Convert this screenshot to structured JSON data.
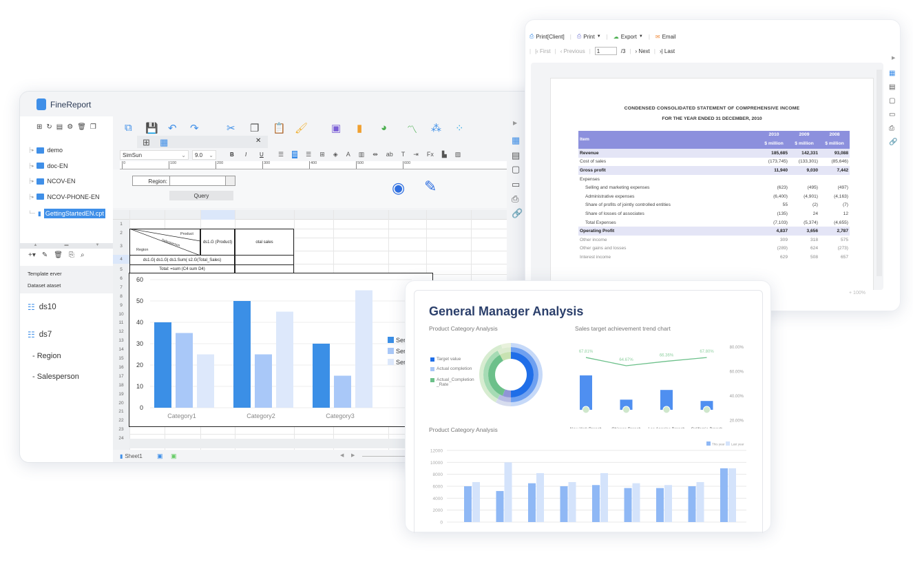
{
  "designer": {
    "app_title": "FineReport",
    "tree": [
      {
        "label": "demo",
        "type": "folder"
      },
      {
        "label": "doc-EN",
        "type": "folder"
      },
      {
        "label": "NCOV-EN",
        "type": "folder"
      },
      {
        "label": "NCOV-PHONE-EN",
        "type": "folder"
      },
      {
        "label": "GettingStartedEN.cpt",
        "type": "file",
        "selected": true
      }
    ],
    "panel_labels": [
      "Template erver",
      "Dataset ataset"
    ],
    "datasets": [
      {
        "label": "ds10",
        "fields": []
      },
      {
        "label": "ds7",
        "fields": [
          "- Region",
          "- Salesperson"
        ]
      }
    ],
    "font_name": "SimSun",
    "font_size": "9.0",
    "format_buttons": [
      "B",
      "I",
      "U"
    ],
    "ruler_ticks": [
      "0",
      "100",
      "200",
      "300",
      "400",
      "500",
      "600"
    ],
    "param_label": "Region:",
    "param_value": "",
    "query_button": "Query",
    "row_numbers": [
      "1",
      "2",
      "3",
      "4",
      "5",
      "6",
      "7",
      "8",
      "9",
      "10",
      "11",
      "12",
      "13",
      "14",
      "15",
      "16",
      "17",
      "18",
      "19",
      "20",
      "21",
      "22",
      "23",
      "24"
    ],
    "cells": {
      "product": "Product",
      "salesperson": "Salesperson",
      "region": "Region",
      "ds1g": "ds1.G (Product)",
      "total_sales_header": "otal sales",
      "row3": "ds1.G| ds1.G| ds1.Sum( s2.G(Total_Sales)",
      "row4": "Total: =sum (C4 sum D4)"
    },
    "sheet_tab": "Sheet1",
    "accent": "#3f8fe8"
  },
  "preview": {
    "toolbar": [
      "Print[Client]",
      "Print",
      "Export",
      "Email"
    ],
    "pager": {
      "first": "First",
      "previous": "Previous",
      "page": "1",
      "total": "/3",
      "next": "Next",
      "last": "Last"
    },
    "zoom": "100%",
    "title": "CONDENSED CONSOLIDATED STATEMENT OF COMPREHENSIVE INCOME",
    "subtitle": "FOR THE YEAR ENDED 31 DECEMBER, 2010",
    "header": {
      "item": "Item",
      "years": [
        "2010",
        "2009",
        "2008"
      ],
      "unit": "$ million"
    },
    "rows": [
      {
        "label": "Revenue",
        "values": [
          "185,685",
          "142,331",
          "93,088"
        ],
        "style": "band"
      },
      {
        "label": "Cost of sales",
        "values": [
          "(173,745)",
          "(133,301)",
          "(85,646)"
        ],
        "style": "normal"
      },
      {
        "label": "Gross profit",
        "values": [
          "11,940",
          "9,030",
          "7,442"
        ],
        "style": "band"
      },
      {
        "label": "Expenses",
        "values": [
          "",
          "",
          ""
        ],
        "style": "normal"
      },
      {
        "label": "Selling and marketing expenses",
        "values": [
          "(623)",
          "(495)",
          "(497)"
        ],
        "style": "indent"
      },
      {
        "label": "Administrative expenses",
        "values": [
          "(6,400)",
          "(4,901)",
          "(4,163)"
        ],
        "style": "indent"
      },
      {
        "label": "Share of profits of jointly controlled entities",
        "values": [
          "55",
          "(2)",
          "(7)"
        ],
        "style": "indent"
      },
      {
        "label": "Share of losses of associates",
        "values": [
          "(135)",
          "24",
          "12"
        ],
        "style": "indent"
      },
      {
        "label": "Total Expenses",
        "values": [
          "(7,103)",
          "(5,374)",
          "(4,655)"
        ],
        "style": "indent"
      },
      {
        "label": "Operating Profit",
        "values": [
          "4,837",
          "3,656",
          "2,787"
        ],
        "style": "band"
      },
      {
        "label": "Other income",
        "values": [
          "309",
          "318",
          "575"
        ],
        "style": "faded"
      },
      {
        "label": "Other gains and losses",
        "values": [
          "(289)",
          "624",
          "(273)"
        ],
        "style": "faded"
      },
      {
        "label": "Interest income",
        "values": [
          "629",
          "508",
          "657"
        ],
        "style": "faded"
      }
    ],
    "header_color": "#8c90dd"
  },
  "dashboard": {
    "title": "General Manager Analysis",
    "donut_title": "Product Category Analysis",
    "trend_title": "Sales target achievement trend chart",
    "bottom_title": "Product Category Analysis"
  },
  "chart_data": [
    {
      "type": "bar",
      "categories": [
        "Category1",
        "Category2",
        "Category3"
      ],
      "series": [
        {
          "name": "Ser",
          "values": [
            40,
            50,
            30
          ],
          "color": "#3b8fe6"
        },
        {
          "name": "Ser",
          "values": [
            35,
            25,
            15
          ],
          "color": "#a9c8f8"
        },
        {
          "name": "Ser",
          "values": [
            25,
            45,
            55
          ],
          "color": "#dde8fb"
        }
      ],
      "yticks": [
        "0",
        "10",
        "20",
        "30",
        "40",
        "50",
        "60"
      ],
      "ylim": [
        0,
        60
      ],
      "grid": true,
      "legend": "right"
    },
    {
      "type": "pie",
      "title": "Product Category Analysis",
      "legend": [
        "Target value",
        "Actual completion",
        "Actual_Completion _Rate"
      ],
      "colors": [
        "#1f6ee8",
        "#a8c6f5",
        "#6cc08a"
      ],
      "legend_position": "left"
    },
    {
      "type": "bar",
      "title": "Sales target achievement trend chart",
      "categories": [
        "New York Branch",
        "Chicago Branch",
        "Los Angeles Branch",
        "California Branch"
      ],
      "bar_values": [
        78,
        23,
        45,
        20
      ],
      "line": {
        "values": [
          67.81,
          64.67,
          66.36,
          67.8
        ],
        "labels": [
          "67.81%",
          "64.67%",
          "66.36%",
          "67.80%"
        ],
        "color": "#6cc08a"
      },
      "y2ticks": [
        "80.00%",
        "60.00%",
        "40.00%",
        "20.00%"
      ],
      "bar_color": "#4f8ff0"
    },
    {
      "type": "bar",
      "title": "Product Category Analysis",
      "series": [
        {
          "name": "This year",
          "values": [
            6000,
            5200,
            6500,
            6000,
            6200,
            5700,
            5700,
            6000,
            9000
          ],
          "color": "#8fb8f5"
        },
        {
          "name": "Last year",
          "values": [
            6700,
            10000,
            8200,
            6700,
            8200,
            6500,
            6200,
            6700,
            9000
          ],
          "color": "#d4e3fb"
        }
      ],
      "yticks": [
        "0",
        "2000",
        "4000",
        "6000",
        "8000",
        "10000",
        "12000"
      ],
      "ylim": [
        0,
        12000
      ],
      "grid": true,
      "legend": "top-right"
    }
  ]
}
